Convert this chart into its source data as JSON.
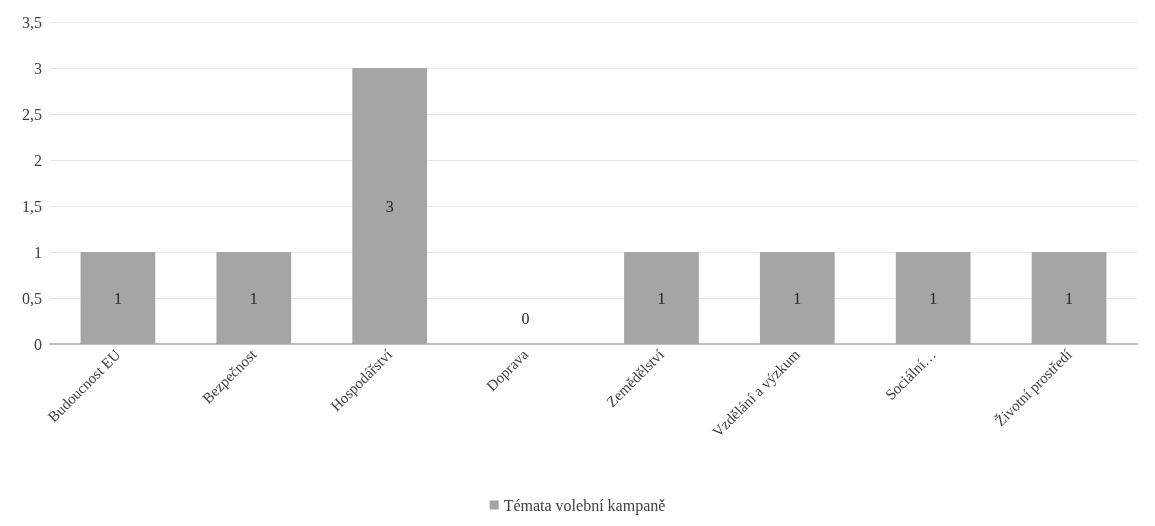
{
  "chart_data": {
    "type": "bar",
    "categories": [
      "Budoucnost EU",
      "Bezpečnost",
      "Hospodářství",
      "Doprava",
      "Zemědělství",
      "Vzdělání a výzkum",
      "Sociální…",
      "Životní prostředí"
    ],
    "series": [
      {
        "name": "Témata volební kampaně",
        "color": "#a5a5a5",
        "values": [
          1,
          1,
          3,
          0,
          1,
          1,
          1,
          1
        ]
      }
    ],
    "ylim": [
      0,
      3.5
    ],
    "yticks": [
      0,
      {
        "value": 0.5,
        "label": "0,5"
      },
      1,
      {
        "value": 1.5,
        "label": "1,5"
      },
      2,
      {
        "value": 2.5,
        "label": "2,5"
      },
      3,
      {
        "value": 3.5,
        "label": "3,5"
      }
    ],
    "grid": "y",
    "legend": "bottom",
    "data_labels": true
  }
}
